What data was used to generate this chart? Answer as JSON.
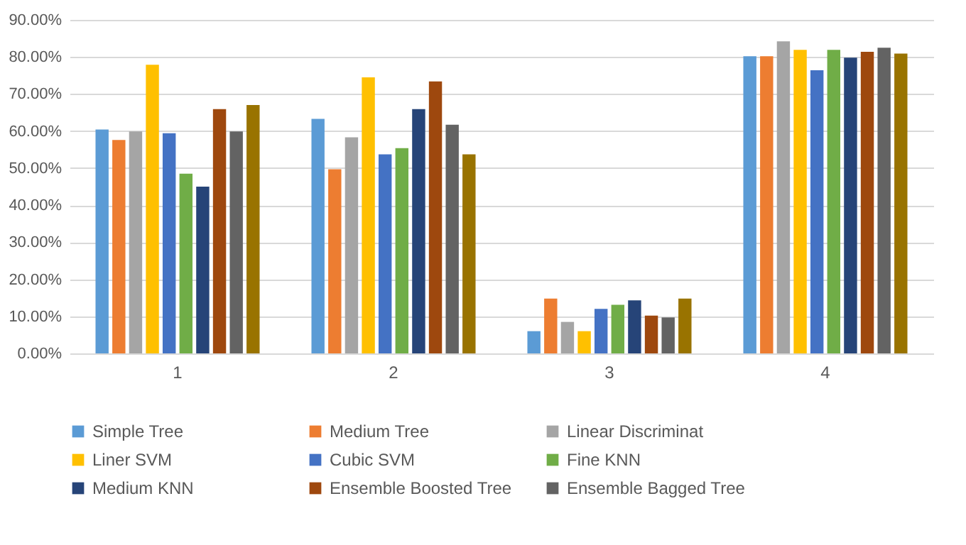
{
  "chart_data": {
    "type": "bar",
    "categories": [
      "1",
      "2",
      "3",
      "4"
    ],
    "series": [
      {
        "name": "Simple Tree",
        "color": "#5b9bd5",
        "values": [
          60.4,
          63.3,
          6.0,
          80.2
        ]
      },
      {
        "name": "Medium Tree",
        "color": "#ed7d31",
        "values": [
          57.6,
          49.7,
          14.8,
          80.2
        ]
      },
      {
        "name": "Linear Discriminat",
        "color": "#a5a5a5",
        "values": [
          59.9,
          58.3,
          8.5,
          84.2
        ]
      },
      {
        "name": "Liner SVM",
        "color": "#ffc000",
        "values": [
          77.9,
          74.5,
          6.0,
          81.9
        ]
      },
      {
        "name": "Cubic SVM",
        "color": "#4472c4",
        "values": [
          59.4,
          53.7,
          12.0,
          76.4
        ]
      },
      {
        "name": "Fine KNN",
        "color": "#70ad47",
        "values": [
          48.5,
          55.4,
          13.1,
          81.9
        ]
      },
      {
        "name": "Medium KNN",
        "color": "#264478",
        "values": [
          45.0,
          65.9,
          14.3,
          79.8
        ]
      },
      {
        "name": "Ensemble Boosted Tree",
        "color": "#9e480e",
        "values": [
          65.9,
          73.4,
          10.2,
          81.4
        ]
      },
      {
        "name": "Ensemble Bagged Tree",
        "color": "#636363",
        "values": [
          59.9,
          61.7,
          9.7,
          82.5
        ]
      },
      {
        "color": "#997300",
        "values": [
          67.0,
          53.7,
          14.8,
          80.9
        ]
      }
    ],
    "ylim": [
      0,
      90
    ],
    "yticks": [
      {
        "value": 0,
        "label": "0.00%"
      },
      {
        "value": 10,
        "label": "10.00%"
      },
      {
        "value": 20,
        "label": "20.00%"
      },
      {
        "value": 30,
        "label": "30.00%"
      },
      {
        "value": 40,
        "label": "40.00%"
      },
      {
        "value": 50,
        "label": "50.00%"
      },
      {
        "value": 60,
        "label": "60.00%"
      },
      {
        "value": 70,
        "label": "70.00%"
      },
      {
        "value": 80,
        "label": "80.00%"
      },
      {
        "value": 90,
        "label": "90.00%"
      }
    ],
    "grid": "y",
    "legend": "bottom"
  }
}
